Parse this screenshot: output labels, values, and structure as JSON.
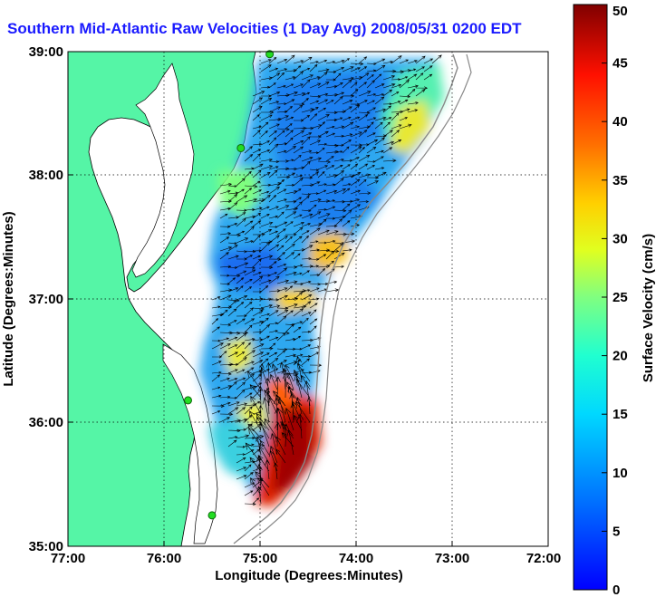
{
  "title": "Southern Mid-Atlantic Raw Velocities (1 Day Avg) 2008/05/31 0200 EDT",
  "map": {
    "xlabel": "Longitude (Degrees:Minutes)",
    "ylabel": "Latitude (Degrees:Minutes)",
    "x_ticks": [
      "77:00",
      "76:00",
      "75:00",
      "74:00",
      "73:00",
      "72:00"
    ],
    "y_ticks": [
      "39:00",
      "38:00",
      "37:00",
      "36:00",
      "35:00"
    ],
    "lon_range": [
      -77,
      -72
    ],
    "lat_range": [
      35,
      39
    ],
    "land_color": "#55f5a6",
    "grid": true
  },
  "colorbar": {
    "label": "Surface Velocity (cm/s)",
    "ticks": [
      "0",
      "5",
      "10",
      "15",
      "20",
      "25",
      "30",
      "35",
      "40",
      "45",
      "50"
    ],
    "range": [
      0,
      50
    ],
    "colormap": "jet"
  },
  "stations": [
    {
      "lon": -74.9,
      "lat": 38.98
    },
    {
      "lon": -75.2,
      "lat": 38.22
    },
    {
      "lon": -75.75,
      "lat": 36.18
    },
    {
      "lon": -75.5,
      "lat": 35.25
    }
  ]
}
